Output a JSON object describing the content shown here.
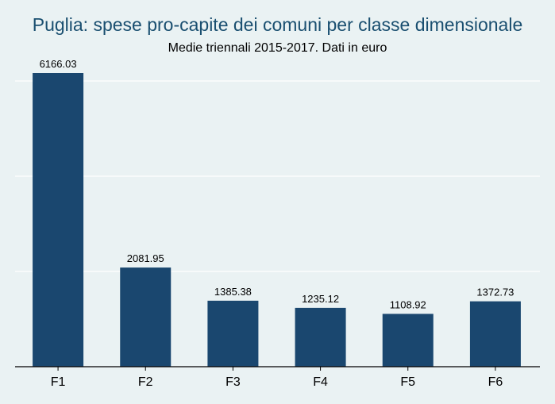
{
  "chart_data": {
    "type": "bar",
    "title": "Puglia: spese pro-capite dei comuni per classe dimensionale",
    "subtitle": "Medie triennali 2015-2017. Dati in euro",
    "categories": [
      "F1",
      "F2",
      "F3",
      "F4",
      "F5",
      "F6"
    ],
    "values": [
      6166.03,
      2081.95,
      1385.38,
      1235.12,
      1108.92,
      1372.73
    ],
    "value_labels": [
      "6166.03",
      "2081.95",
      "1385.38",
      "1235.12",
      "1108.92",
      "1372.73"
    ],
    "ylim": [
      0,
      6166.03
    ],
    "y_gridlines": [
      2000,
      4000,
      6000
    ],
    "grid": true,
    "xlabel": "",
    "ylabel": "",
    "colors": {
      "bar": "#1a476f",
      "background": "#eaf2f3",
      "grid": "#ffffff",
      "title": "#1a4f70"
    }
  }
}
